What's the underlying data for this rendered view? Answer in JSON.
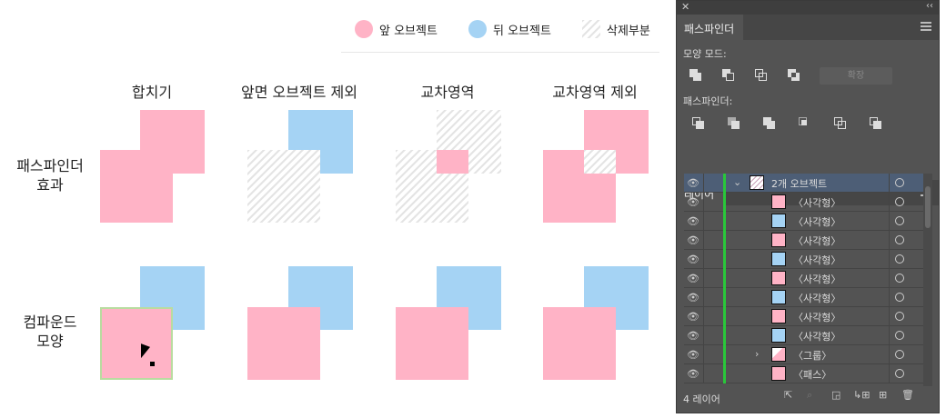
{
  "legend": [
    {
      "label": "앞 오브젝트",
      "color": "#ffb3c6"
    },
    {
      "label": "뒤 오브젝트",
      "color": "#a5d3f4"
    },
    {
      "label": "삭제부분",
      "pattern": "hatch"
    }
  ],
  "columns": [
    "합치기",
    "앞면 오브젝트 제외",
    "교차영역",
    "교차영역 제외"
  ],
  "rows": [
    "패스파인더\n효과",
    "컴파운드\n모양"
  ],
  "row_labels": {
    "effect1": "패스파인더",
    "effect2": "효과",
    "compound1": "컴파운드",
    "compound2": "모양"
  },
  "pathfinder_panel": {
    "tab": "패스파인더",
    "shape_modes_label": "모양 모드:",
    "expand_button": "확장",
    "pathfinders_label": "패스파인더:"
  },
  "layers_panel": {
    "tab": "레이어",
    "footer": "4 레이어",
    "items": [
      {
        "name": "2개 오브젝트",
        "thumb": "hatch",
        "expanded": true,
        "selected": true
      },
      {
        "name": "〈사각형〉",
        "thumb": "pink"
      },
      {
        "name": "〈사각형〉",
        "thumb": "blue"
      },
      {
        "name": "〈사각형〉",
        "thumb": "pink"
      },
      {
        "name": "〈사각형〉",
        "thumb": "blue"
      },
      {
        "name": "〈사각형〉",
        "thumb": "pink"
      },
      {
        "name": "〈사각형〉",
        "thumb": "blue"
      },
      {
        "name": "〈사각형〉",
        "thumb": "pink"
      },
      {
        "name": "〈사각형〉",
        "thumb": "blue"
      },
      {
        "name": "〈그룹〉",
        "thumb": "mixed",
        "collapsed": true
      },
      {
        "name": "〈패스〉",
        "thumb": "pink"
      }
    ]
  },
  "colors": {
    "front": "#ffb3c6",
    "back": "#a5d3f4",
    "panel": "#535353",
    "layer_color": "#29c73a"
  }
}
